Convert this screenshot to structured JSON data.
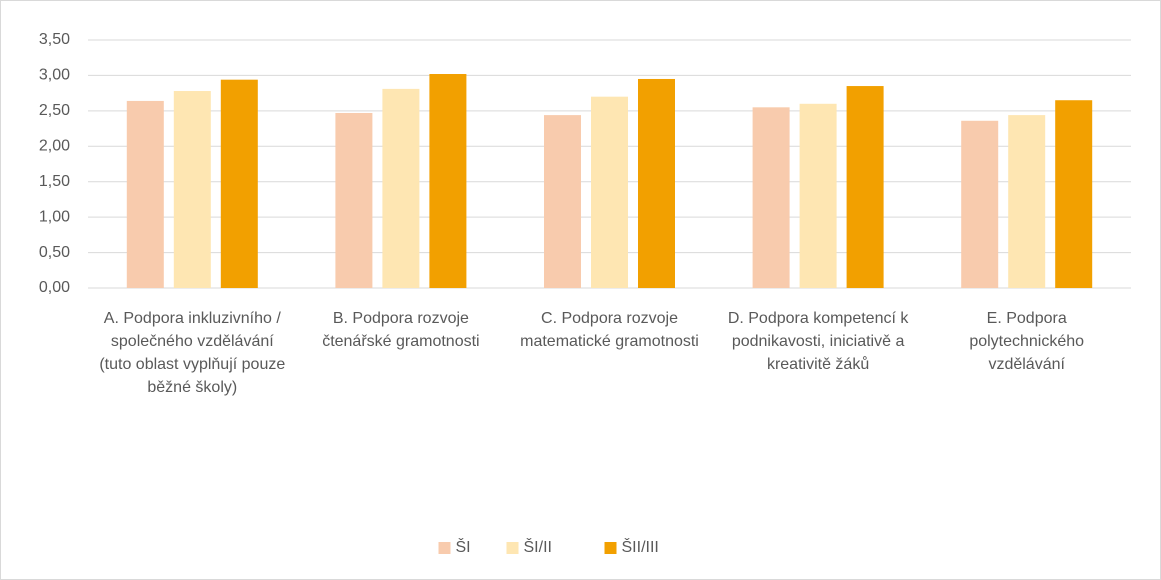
{
  "chart_data": {
    "type": "bar",
    "categories": [
      "A. Podpora inkluzivního / společného vzdělávání (tuto oblast vyplňují pouze běžné školy)",
      "B. Podpora rozvoje čtenářské gramotnosti",
      "C. Podpora rozvoje matematické gramotnosti",
      "D. Podpora kompetencí k podnikavosti, iniciativě a kreativitě žáků",
      "E. Podpora polytechnického vzdělávání"
    ],
    "series": [
      {
        "name": "ŠI",
        "color": "#f8cbad",
        "values": [
          2.64,
          2.47,
          2.44,
          2.55,
          2.36
        ]
      },
      {
        "name": "ŠI/II",
        "color": "#fee6b2",
        "values": [
          2.78,
          2.81,
          2.7,
          2.6,
          2.44
        ]
      },
      {
        "name": "ŠII/III",
        "color": "#f2a000",
        "values": [
          2.94,
          3.02,
          2.95,
          2.85,
          2.65
        ]
      }
    ],
    "ylim": [
      0,
      3.5
    ],
    "yticks": [
      {
        "value": 0,
        "label": "0,00"
      },
      {
        "value": 0.5,
        "label": "0,50"
      },
      {
        "value": 1,
        "label": "1,00"
      },
      {
        "value": 1.5,
        "label": "1,50"
      },
      {
        "value": 2,
        "label": "2,00"
      },
      {
        "value": 2.5,
        "label": "2,50"
      },
      {
        "value": 3,
        "label": "3,00"
      },
      {
        "value": 3.5,
        "label": "3,50"
      }
    ],
    "grid": true,
    "legend": "bottom"
  }
}
